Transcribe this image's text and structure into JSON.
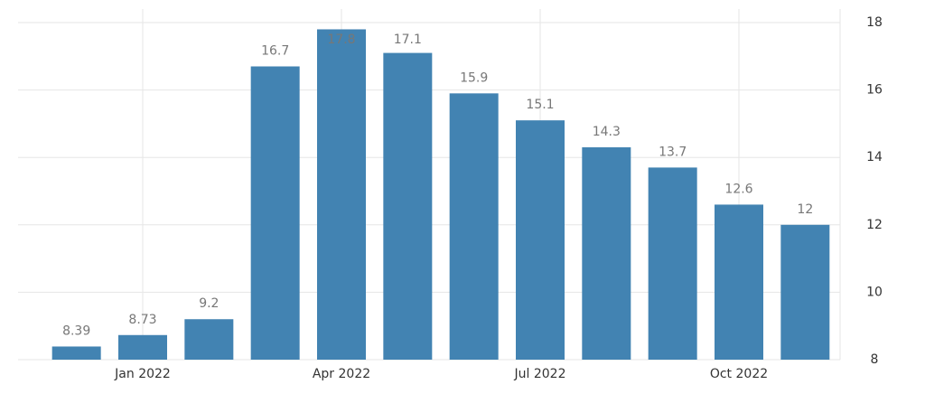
{
  "chart_data": {
    "type": "bar",
    "categories": [
      null,
      "Jan 2022",
      null,
      null,
      "Apr 2022",
      null,
      null,
      "Jul 2022",
      null,
      null,
      "Oct 2022",
      null
    ],
    "values": [
      8.39,
      8.73,
      9.2,
      16.7,
      17.8,
      17.1,
      15.9,
      15.1,
      14.3,
      13.7,
      12.6,
      12
    ],
    "color": "#4283b2",
    "ylim": [
      8,
      18
    ],
    "yticks": [
      8,
      10,
      12,
      14,
      16,
      18
    ],
    "grid": true
  }
}
